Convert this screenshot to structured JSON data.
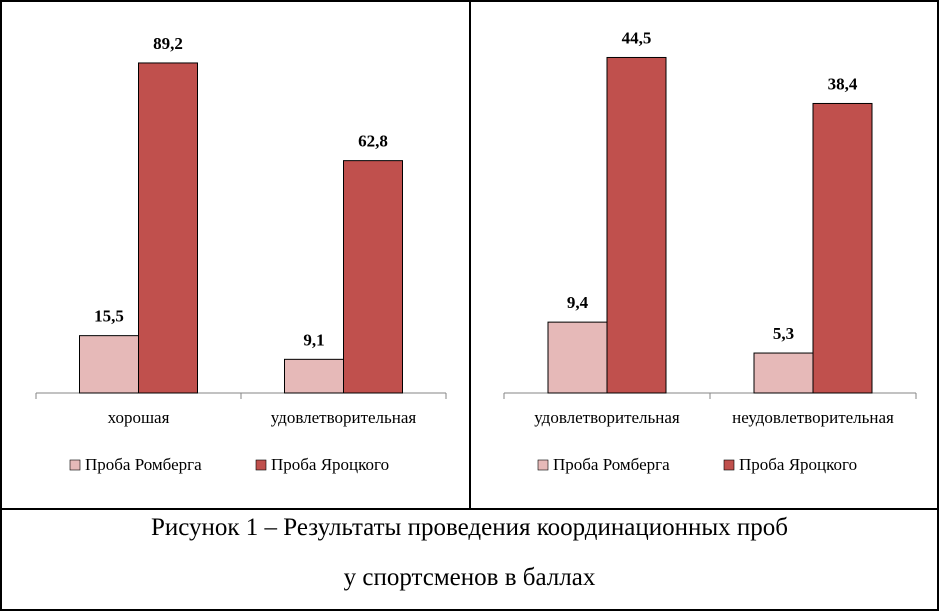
{
  "chart_data": [
    {
      "type": "bar",
      "categories": [
        "хорошая",
        "удовлетворительная"
      ],
      "series": [
        {
          "name": "Проба Ромберга",
          "values": [
            15.5,
            9.1
          ],
          "labels": [
            "15,5",
            "9,1"
          ],
          "color": "#e6b9b8"
        },
        {
          "name": "Проба Яроцкого",
          "values": [
            89.2,
            62.8
          ],
          "labels": [
            "89,2",
            "62,8"
          ],
          "color": "#c0504d"
        }
      ],
      "ylim": [
        0,
        100
      ],
      "grid": false,
      "legend": "bottom"
    },
    {
      "type": "bar",
      "categories": [
        "удовлетворительная",
        "неудовлетворительная"
      ],
      "series": [
        {
          "name": "Проба Ромберга",
          "values": [
            9.4,
            5.3
          ],
          "labels": [
            "9,4",
            "5,3"
          ],
          "color": "#e6b9b8"
        },
        {
          "name": "Проба Яроцкого",
          "values": [
            44.5,
            38.4
          ],
          "labels": [
            "44,5",
            "38,4"
          ],
          "color": "#c0504d"
        }
      ],
      "ylim": [
        0,
        50
      ],
      "grid": false,
      "legend": "bottom"
    }
  ],
  "caption": {
    "line1": "Рисунок 1 – Результаты проведения координационных проб",
    "line2": "у спортсменов в баллах"
  }
}
